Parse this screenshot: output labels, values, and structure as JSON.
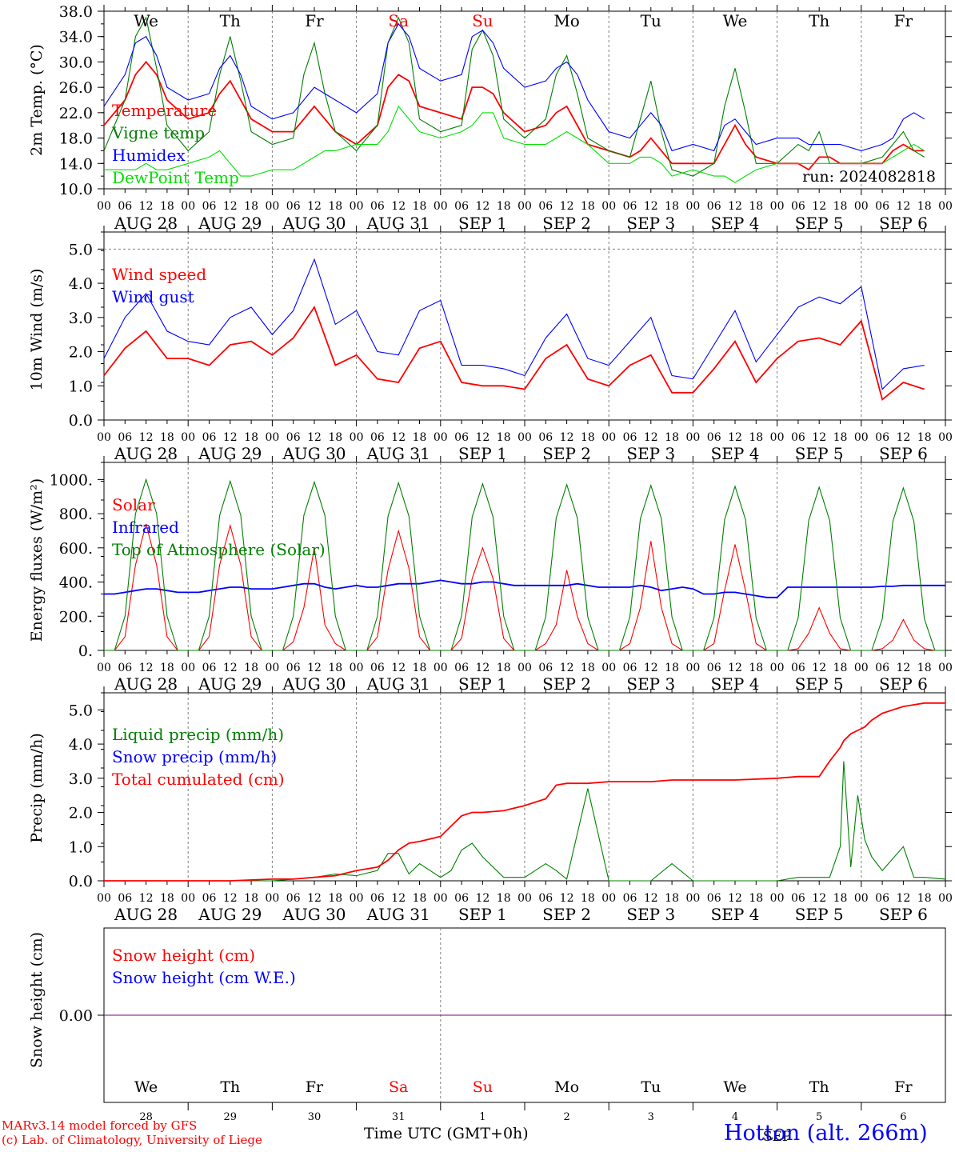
{
  "run_label": "run: 2024082818",
  "station_label": "Hotton (alt. 266m)",
  "footer": {
    "line1": "MARv3.14 model forced by GFS",
    "line2": "(c) Lab. of Climatology, University of Liege",
    "time_axis": "Time UTC (GMT+0h)"
  },
  "colors": {
    "red": "#ff0000",
    "blue": "#0000ff",
    "green": "#008000",
    "lightgreen": "#00e000",
    "grid": "#808080",
    "snow": "#7f007f"
  },
  "days": {
    "weekdays": [
      "We",
      "Th",
      "Fr",
      "Sa",
      "Su",
      "Mo",
      "Tu",
      "We",
      "Th",
      "Fr"
    ],
    "weekend": [
      false,
      false,
      false,
      true,
      true,
      false,
      false,
      false,
      false,
      false
    ],
    "dates": [
      "AUG 28",
      "AUG 29",
      "AUG 30",
      "AUG 31",
      "SEP  1",
      "SEP  2",
      "SEP  3",
      "SEP  4",
      "SEP  5",
      "SEP  6"
    ],
    "day_numbers": [
      "28",
      "29",
      "30",
      "31",
      "1",
      "2",
      "3",
      "4",
      "5",
      "6"
    ],
    "hour_ticks": [
      "00",
      "06",
      "12",
      "18"
    ],
    "end_tick": "00",
    "bottom_extra_month": "SEP"
  },
  "chart_data": [
    {
      "type": "line",
      "ylabel": "2m Temp. (°C)",
      "ylim": [
        10,
        38
      ],
      "yticks": [
        "10.0",
        "14.0",
        "18.0",
        "22.0",
        "26.0",
        "30.0",
        "34.0",
        "38.0"
      ],
      "x_hours": [
        0,
        6,
        9,
        12,
        15,
        18,
        24,
        30,
        33,
        36,
        39,
        42,
        48,
        54,
        57,
        60,
        63,
        66,
        72,
        78,
        81,
        84,
        87,
        90,
        96,
        102,
        105,
        108,
        111,
        114,
        120,
        126,
        129,
        132,
        135,
        138,
        144,
        150,
        153,
        156,
        159,
        162,
        168,
        174,
        177,
        180,
        183,
        186,
        192,
        198,
        201,
        204,
        207,
        210,
        216,
        222,
        225,
        228,
        231,
        234
      ],
      "series": [
        {
          "name": "Temperature",
          "color": "red",
          "values": [
            20,
            24,
            28,
            30,
            28,
            24,
            21,
            22,
            25,
            27,
            24,
            21,
            19,
            19,
            21,
            23,
            21,
            19,
            17,
            20,
            26,
            28,
            27,
            23,
            22,
            21,
            26,
            26,
            25,
            22,
            19,
            20,
            22,
            23,
            20,
            17,
            16,
            15,
            16,
            18,
            16,
            14,
            14,
            14,
            17,
            20,
            17,
            15,
            14,
            14,
            13,
            15,
            15,
            14,
            14,
            14,
            16,
            17,
            16,
            16
          ]
        },
        {
          "name": "Vigne temp",
          "color": "green",
          "values": [
            16,
            24,
            34,
            37,
            29,
            20,
            16,
            19,
            28,
            34,
            27,
            19,
            17,
            18,
            28,
            33,
            25,
            19,
            16,
            20,
            33,
            37,
            33,
            21,
            19,
            20,
            32,
            35,
            31,
            21,
            18,
            21,
            28,
            31,
            25,
            18,
            16,
            15,
            21,
            27,
            19,
            13,
            12,
            14,
            23,
            29,
            22,
            14,
            14,
            17,
            16,
            19,
            14,
            14,
            14,
            15,
            17,
            19,
            16,
            15
          ]
        },
        {
          "name": "Humidex",
          "color": "blue",
          "values": [
            23,
            28,
            33,
            34,
            31,
            26,
            24,
            25,
            29,
            31,
            28,
            23,
            21,
            22,
            24,
            26,
            25,
            24,
            22,
            25,
            33,
            36,
            34,
            29,
            27,
            28,
            34,
            35,
            33,
            29,
            26,
            27,
            29,
            30,
            28,
            24,
            19,
            18,
            20,
            22,
            20,
            16,
            17,
            16,
            20,
            21,
            19,
            17,
            18,
            18,
            17,
            17,
            17,
            17,
            16,
            17,
            18,
            21,
            22,
            21
          ]
        },
        {
          "name": "DewPoint Temp",
          "color": "lightgreen",
          "values": [
            13,
            13,
            13,
            14,
            13,
            13,
            14,
            15,
            16,
            14,
            12,
            12,
            13,
            13,
            14,
            15,
            16,
            16,
            17,
            17,
            19,
            23,
            21,
            19,
            18,
            19,
            20,
            22,
            22,
            18,
            17,
            17,
            18,
            19,
            18,
            17,
            14,
            14,
            15,
            15,
            14,
            12,
            13,
            12,
            12,
            11,
            12,
            13,
            14,
            14,
            14,
            14,
            14,
            14,
            14,
            14,
            15,
            16,
            17,
            16
          ]
        }
      ]
    },
    {
      "type": "line",
      "ylabel": "10m Wind (m/s)",
      "ylim": [
        0,
        5.5
      ],
      "yticks": [
        "0.0",
        "1.0",
        "2.0",
        "3.0",
        "4.0",
        "5.0"
      ],
      "x_hours": [
        0,
        6,
        12,
        18,
        24,
        30,
        36,
        42,
        48,
        54,
        60,
        66,
        72,
        78,
        84,
        90,
        96,
        102,
        108,
        114,
        120,
        126,
        132,
        138,
        144,
        150,
        156,
        162,
        168,
        174,
        180,
        186,
        192,
        198,
        204,
        210,
        216,
        222,
        228,
        234
      ],
      "series": [
        {
          "name": "Wind speed",
          "color": "red",
          "values": [
            1.3,
            2.1,
            2.6,
            1.8,
            1.8,
            1.6,
            2.2,
            2.3,
            1.9,
            2.4,
            3.3,
            1.6,
            1.9,
            1.2,
            1.1,
            2.1,
            2.3,
            1.1,
            1.0,
            1.0,
            0.9,
            1.8,
            2.2,
            1.2,
            1.0,
            1.6,
            1.9,
            0.8,
            0.8,
            1.5,
            2.3,
            1.1,
            1.8,
            2.3,
            2.4,
            2.2,
            2.9,
            0.6,
            1.1,
            0.9
          ]
        },
        {
          "name": "Wind gust",
          "color": "blue",
          "values": [
            1.8,
            3.0,
            3.7,
            2.6,
            2.3,
            2.2,
            3.0,
            3.3,
            2.5,
            3.2,
            4.7,
            2.8,
            3.2,
            2.0,
            1.9,
            3.2,
            3.5,
            1.6,
            1.6,
            1.5,
            1.3,
            2.4,
            3.1,
            1.8,
            1.6,
            2.3,
            3.0,
            1.3,
            1.2,
            2.2,
            3.2,
            1.7,
            2.5,
            3.3,
            3.6,
            3.4,
            3.9,
            0.9,
            1.5,
            1.6
          ]
        }
      ]
    },
    {
      "type": "line",
      "ylabel": "Energy fluxes (W/m²)",
      "ylim": [
        0,
        1100
      ],
      "yticks": [
        "0.",
        "200.",
        "400.",
        "600.",
        "800.",
        "1000."
      ],
      "x_hours": [
        0,
        3,
        6,
        9,
        12,
        15,
        18,
        21,
        24,
        27,
        30,
        33,
        36,
        39,
        42,
        45,
        48,
        51,
        54,
        57,
        60,
        63,
        66,
        69,
        72,
        75,
        78,
        81,
        84,
        87,
        90,
        93,
        96,
        99,
        102,
        105,
        108,
        111,
        114,
        117,
        120,
        123,
        126,
        129,
        132,
        135,
        138,
        141,
        144,
        147,
        150,
        153,
        156,
        159,
        162,
        165,
        168,
        171,
        174,
        177,
        180,
        183,
        186,
        189,
        192,
        195,
        198,
        201,
        204,
        207,
        210,
        213,
        216,
        219,
        222,
        225,
        228,
        231,
        234,
        237,
        240
      ],
      "series": [
        {
          "name": "Solar",
          "color": "red",
          "values": [
            0,
            0,
            80,
            500,
            740,
            500,
            80,
            0,
            0,
            0,
            80,
            500,
            730,
            500,
            80,
            0,
            0,
            0,
            50,
            250,
            600,
            150,
            40,
            0,
            0,
            0,
            80,
            470,
            700,
            480,
            80,
            0,
            0,
            0,
            70,
            420,
            600,
            420,
            70,
            0,
            0,
            0,
            40,
            150,
            470,
            200,
            40,
            0,
            0,
            0,
            40,
            250,
            640,
            250,
            40,
            0,
            0,
            0,
            40,
            350,
            620,
            350,
            40,
            0,
            0,
            0,
            10,
            100,
            250,
            100,
            10,
            0,
            0,
            0,
            10,
            60,
            180,
            60,
            10,
            0,
            0
          ]
        },
        {
          "name": "Infrared",
          "color": "blue",
          "values": [
            330,
            330,
            340,
            350,
            360,
            360,
            350,
            340,
            340,
            340,
            350,
            360,
            370,
            370,
            360,
            360,
            360,
            370,
            380,
            390,
            390,
            370,
            360,
            370,
            380,
            370,
            370,
            380,
            390,
            390,
            390,
            400,
            410,
            400,
            390,
            390,
            400,
            400,
            390,
            380,
            380,
            380,
            380,
            380,
            380,
            390,
            380,
            370,
            370,
            370,
            370,
            380,
            370,
            350,
            360,
            370,
            360,
            330,
            330,
            340,
            340,
            330,
            320,
            310,
            310,
            370,
            370,
            370,
            370,
            370,
            370,
            370,
            370,
            370,
            375,
            375,
            380,
            380,
            380,
            380,
            380
          ]
        },
        {
          "name": "Top of Atmosphere (Solar)",
          "color": "green",
          "values": [
            0,
            0,
            200,
            800,
            1000,
            800,
            200,
            0,
            0,
            0,
            200,
            790,
            990,
            790,
            200,
            0,
            0,
            0,
            200,
            790,
            985,
            790,
            200,
            0,
            0,
            0,
            200,
            785,
            980,
            785,
            200,
            0,
            0,
            0,
            200,
            780,
            975,
            780,
            200,
            0,
            0,
            0,
            195,
            775,
            970,
            775,
            195,
            0,
            0,
            0,
            195,
            770,
            965,
            770,
            195,
            0,
            0,
            0,
            190,
            765,
            960,
            765,
            190,
            0,
            0,
            0,
            190,
            760,
            955,
            760,
            190,
            0,
            0,
            0,
            185,
            755,
            950,
            755,
            185,
            0,
            0
          ]
        }
      ]
    },
    {
      "type": "line",
      "ylabel": "Precip (mm/h)",
      "ylim": [
        0,
        5.5
      ],
      "yticks": [
        "0.0",
        "1.0",
        "2.0",
        "3.0",
        "4.0",
        "5.0"
      ],
      "x_hours": [
        0,
        12,
        24,
        36,
        48,
        54,
        60,
        66,
        72,
        78,
        81,
        84,
        87,
        90,
        96,
        99,
        102,
        105,
        108,
        114,
        120,
        126,
        129,
        132,
        138,
        144,
        150,
        156,
        162,
        168,
        180,
        192,
        198,
        204,
        207,
        210,
        211,
        213,
        215,
        217,
        219,
        222,
        228,
        231,
        234,
        240
      ],
      "series": [
        {
          "name": "Liquid precip (mm/h)",
          "color": "green",
          "values": [
            0,
            0,
            0,
            0,
            0,
            0.05,
            0.1,
            0.2,
            0.15,
            0.3,
            0.8,
            0.8,
            0.2,
            0.5,
            0.1,
            0.3,
            0.9,
            1.1,
            0.7,
            0.1,
            0.1,
            0.5,
            0.3,
            0.05,
            2.7,
            0,
            0,
            0,
            0.5,
            0,
            0,
            0,
            0.1,
            0.1,
            0.1,
            1.0,
            3.5,
            0.4,
            2.5,
            1.2,
            0.7,
            0.3,
            1.0,
            0.1,
            0.1,
            0.05
          ]
        },
        {
          "name": "Snow precip (mm/h)",
          "color": "blue",
          "values": []
        },
        {
          "name": "Total cumulated (cm)",
          "color": "red",
          "values": [
            0,
            0,
            0,
            0,
            0.05,
            0.05,
            0.1,
            0.15,
            0.3,
            0.4,
            0.6,
            0.9,
            1.1,
            1.15,
            1.3,
            1.6,
            1.9,
            2.0,
            2.0,
            2.05,
            2.2,
            2.4,
            2.8,
            2.85,
            2.85,
            2.9,
            2.9,
            2.9,
            2.95,
            2.95,
            2.95,
            3.0,
            3.05,
            3.05,
            3.5,
            3.9,
            4.1,
            4.3,
            4.4,
            4.5,
            4.7,
            4.9,
            5.1,
            5.15,
            5.2,
            5.2
          ]
        }
      ]
    },
    {
      "type": "line",
      "ylabel": "Snow height (cm)",
      "yticks": [
        "0.00"
      ],
      "x_hours": [
        0,
        240
      ],
      "series": [
        {
          "name": "Snow height (cm)",
          "color": "red",
          "values": [
            0,
            0
          ]
        },
        {
          "name": "Snow height (cm W.E.)",
          "color": "blue",
          "values": [
            0,
            0
          ]
        }
      ]
    }
  ]
}
